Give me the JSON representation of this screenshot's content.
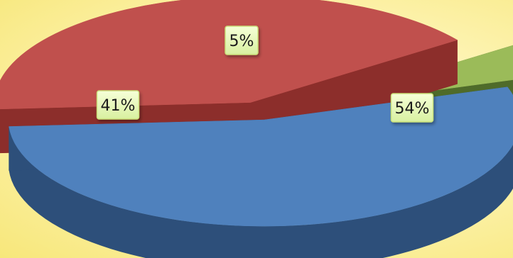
{
  "chart_data": {
    "type": "pie",
    "title": "",
    "categories": [
      "",
      "",
      ""
    ],
    "values": [
      54,
      41,
      5
    ],
    "labels": [
      "54%",
      "41%",
      "5%"
    ],
    "colors": [
      "#4f81bd",
      "#c0504d",
      "#9bbb59"
    ],
    "side_colors": [
      "#2d4f7a",
      "#8c2e2b",
      "#4f6b2a"
    ],
    "legend": "none",
    "style": "3d exploded"
  }
}
